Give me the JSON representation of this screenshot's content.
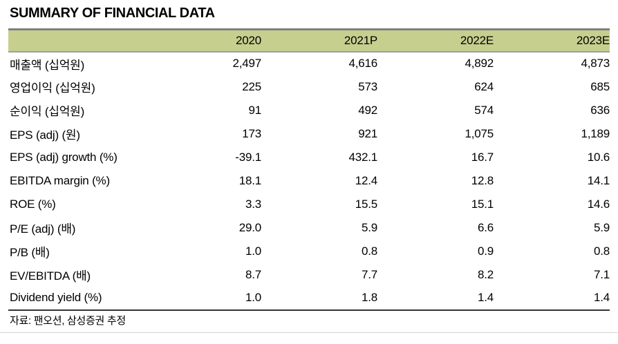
{
  "title": "SUMMARY OF FINANCIAL DATA",
  "table": {
    "columns": [
      "2020",
      "2021P",
      "2022E",
      "2023E"
    ],
    "rows": [
      {
        "label": "매출액 (십억원)",
        "values": [
          "2,497",
          "4,616",
          "4,892",
          "4,873"
        ]
      },
      {
        "label": "영업이익 (십억원)",
        "values": [
          "225",
          "573",
          "624",
          "685"
        ]
      },
      {
        "label": "순이익 (십억원)",
        "values": [
          "91",
          "492",
          "574",
          "636"
        ]
      },
      {
        "label": "EPS (adj) (원)",
        "values": [
          "173",
          "921",
          "1,075",
          "1,189"
        ]
      },
      {
        "label": "EPS (adj) growth (%)",
        "values": [
          "-39.1",
          "432.1",
          "16.7",
          "10.6"
        ]
      },
      {
        "label": "EBITDA margin (%)",
        "values": [
          "18.1",
          "12.4",
          "12.8",
          "14.1"
        ]
      },
      {
        "label": "ROE (%)",
        "values": [
          "3.3",
          "15.5",
          "15.1",
          "14.6"
        ]
      },
      {
        "label": "P/E (adj) (배)",
        "values": [
          "29.0",
          "5.9",
          "6.6",
          "5.9"
        ]
      },
      {
        "label": "P/B (배)",
        "values": [
          "1.0",
          "0.8",
          "0.9",
          "0.8"
        ]
      },
      {
        "label": "EV/EBITDA (배)",
        "values": [
          "8.7",
          "7.7",
          "8.2",
          "7.1"
        ]
      },
      {
        "label": "Dividend yield (%)",
        "values": [
          "1.0",
          "1.8",
          "1.4",
          "1.4"
        ]
      }
    ]
  },
  "footer": {
    "source": "자료: 팬오션, 삼성증권 추정"
  },
  "colors": {
    "header_bg": "#c6cf8e",
    "rule_top": "#7f7f7f",
    "rule_header_bottom": "#9e9e9e",
    "rule_table_bottom": "#333333",
    "rule_page_bottom": "#d6d6d6",
    "text": "#000000"
  }
}
